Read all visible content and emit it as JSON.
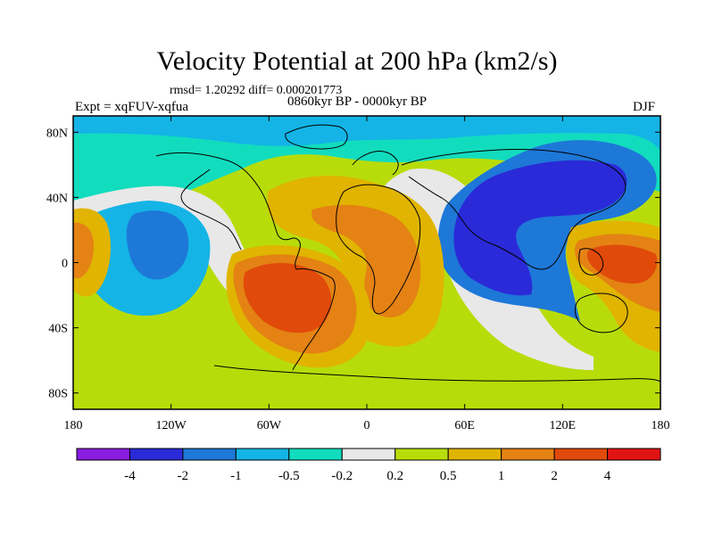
{
  "chart_data": {
    "type": "heatmap",
    "title": "Velocity Potential at 200 hPa (km2/s)",
    "stats_text": "rmsd= 1.20292 diff= 0.000201773",
    "period_text": "0860kyr BP - 0000kyr BP",
    "left_label": "Expt = xqFUV-xqfua",
    "right_label": "DJF",
    "x_ticks": [
      {
        "lon": -180,
        "label": "180"
      },
      {
        "lon": -120,
        "label": "120W"
      },
      {
        "lon": -60,
        "label": "60W"
      },
      {
        "lon": 0,
        "label": "0"
      },
      {
        "lon": 60,
        "label": "60E"
      },
      {
        "lon": 120,
        "label": "120E"
      },
      {
        "lon": 180,
        "label": "180"
      }
    ],
    "y_ticks": [
      {
        "lat": 80,
        "label": "80N"
      },
      {
        "lat": 40,
        "label": "40N"
      },
      {
        "lat": 0,
        "label": "0"
      },
      {
        "lat": -40,
        "label": "40S"
      },
      {
        "lat": -80,
        "label": "80S"
      }
    ],
    "xlim": [
      -180,
      180
    ],
    "ylim": [
      -90,
      90
    ],
    "colorbar": {
      "colors": [
        "#8a1ce0",
        "#2a2ad8",
        "#1e78d8",
        "#14b4e6",
        "#12dcbe",
        "#e8e8e8",
        "#b8dc0a",
        "#e0b400",
        "#e48214",
        "#e04a0a",
        "#e01414"
      ],
      "levels": [
        "-4",
        "-2",
        "-1",
        "-0.5",
        "-0.2",
        "0.2",
        "0.5",
        "1",
        "2",
        "4"
      ]
    },
    "background_color": "#b8dc0a",
    "regions": [
      {
        "name": "negative-north-pacific",
        "lon": -130,
        "lat": 35,
        "value": -0.6
      },
      {
        "name": "negative-asia-indian-ocean",
        "lon": 85,
        "lat": 20,
        "value": -2.5
      },
      {
        "name": "positive-south-america",
        "lon": -55,
        "lat": -10,
        "value": 2.5
      },
      {
        "name": "positive-africa",
        "lon": 20,
        "lat": 5,
        "value": 1.2
      },
      {
        "name": "positive-west-pacific",
        "lon": 150,
        "lat": 0,
        "value": 2.2
      },
      {
        "name": "positive-east-pacific",
        "lon": -170,
        "lat": 10,
        "value": 1.0
      }
    ]
  }
}
